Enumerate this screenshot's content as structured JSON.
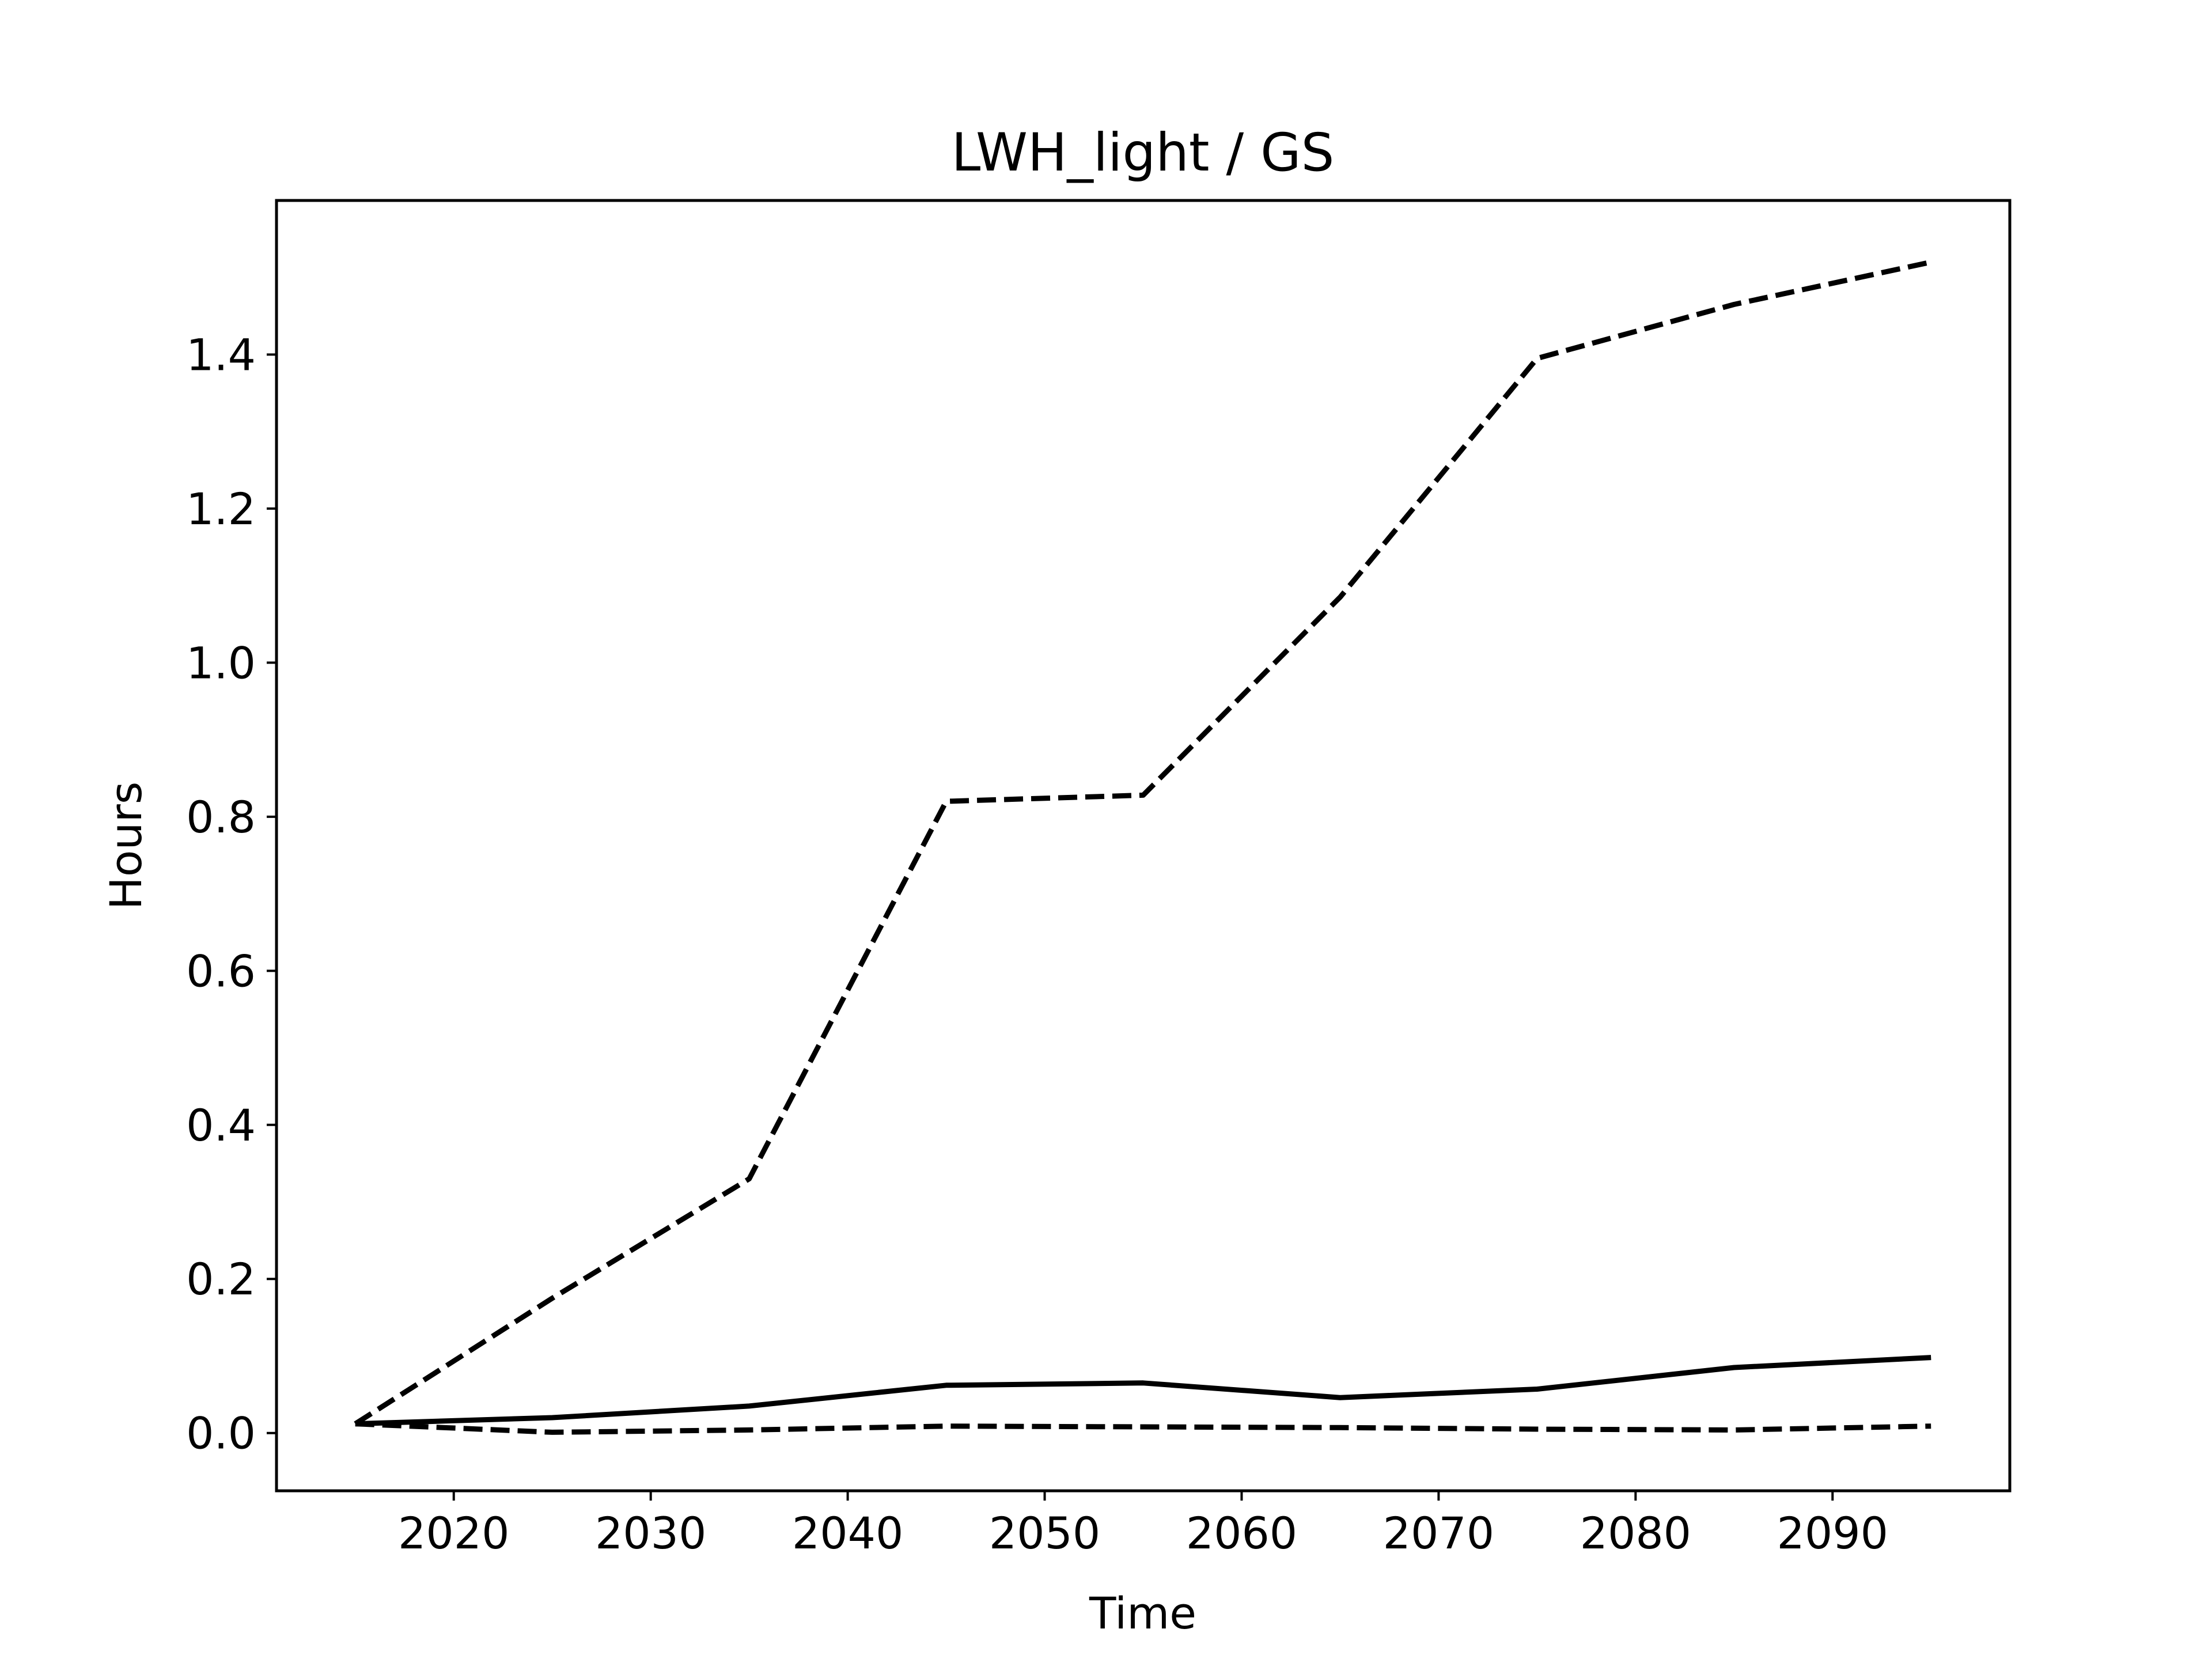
{
  "chart_data": {
    "type": "line",
    "title": "LWH_light / GS",
    "xlabel": "Time",
    "ylabel": "Hours",
    "xlim": [
      2011,
      2099
    ],
    "ylim": [
      -0.075,
      1.6
    ],
    "xticks": [
      2020,
      2030,
      2040,
      2050,
      2060,
      2070,
      2080,
      2090
    ],
    "yticks": [
      0.0,
      0.2,
      0.4,
      0.6,
      0.8,
      1.0,
      1.2,
      1.4
    ],
    "ytick_labels": [
      "0.0",
      "0.2",
      "0.4",
      "0.6",
      "0.8",
      "1.0",
      "1.2",
      "1.4"
    ],
    "grid": false,
    "x": [
      2015,
      2025,
      2035,
      2045,
      2055,
      2065,
      2075,
      2085,
      2095
    ],
    "series": [
      {
        "style": "dashed",
        "color": "#000000",
        "values": [
          0.012,
          0.175,
          0.33,
          0.82,
          0.828,
          1.085,
          1.395,
          1.465,
          1.52
        ]
      },
      {
        "style": "solid",
        "color": "#000000",
        "values": [
          0.012,
          0.02,
          0.035,
          0.062,
          0.065,
          0.046,
          0.057,
          0.085,
          0.098
        ]
      },
      {
        "style": "dashed",
        "color": "#000000",
        "values": [
          0.012,
          0.001,
          0.004,
          0.009,
          0.008,
          0.007,
          0.005,
          0.004,
          0.009
        ]
      }
    ]
  }
}
